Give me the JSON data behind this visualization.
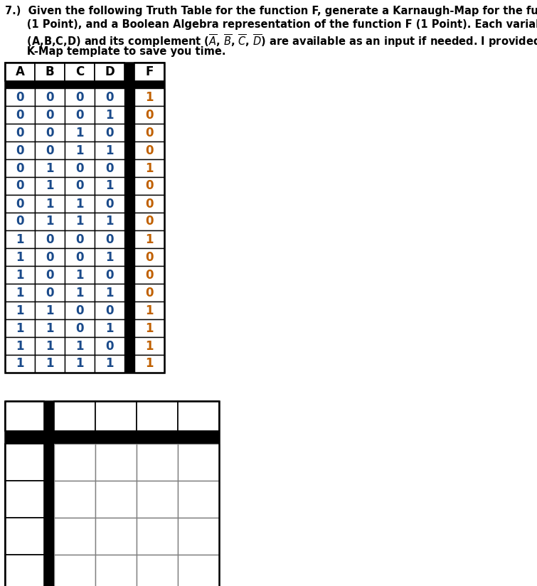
{
  "truth_table": [
    [
      0,
      0,
      0,
      0,
      1
    ],
    [
      0,
      0,
      0,
      1,
      0
    ],
    [
      0,
      0,
      1,
      0,
      0
    ],
    [
      0,
      0,
      1,
      1,
      0
    ],
    [
      0,
      1,
      0,
      0,
      1
    ],
    [
      0,
      1,
      0,
      1,
      0
    ],
    [
      0,
      1,
      1,
      0,
      0
    ],
    [
      0,
      1,
      1,
      1,
      0
    ],
    [
      1,
      0,
      0,
      0,
      1
    ],
    [
      1,
      0,
      0,
      1,
      0
    ],
    [
      1,
      0,
      1,
      0,
      0
    ],
    [
      1,
      0,
      1,
      1,
      0
    ],
    [
      1,
      1,
      0,
      0,
      1
    ],
    [
      1,
      1,
      0,
      1,
      1
    ],
    [
      1,
      1,
      1,
      0,
      1
    ],
    [
      1,
      1,
      1,
      1,
      1
    ]
  ],
  "text_color_abcd": "#1a4a8a",
  "text_color_f": "#c06000",
  "font_size_title": 10.5,
  "font_size_table": 11
}
